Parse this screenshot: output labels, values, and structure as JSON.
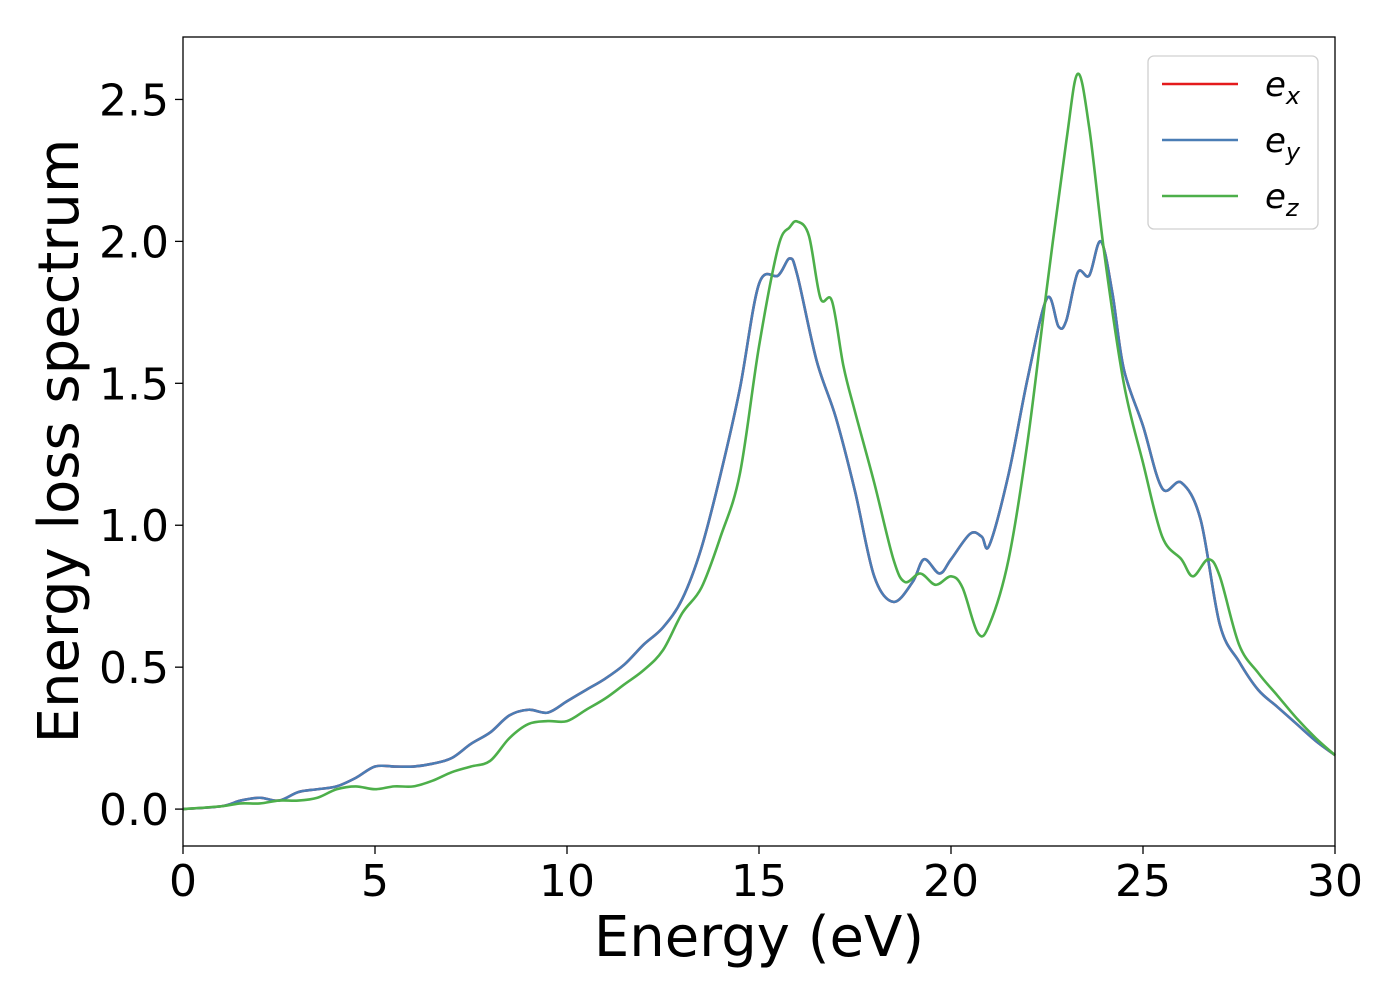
{
  "chart_data": {
    "type": "line",
    "xlabel": "Energy (eV)",
    "ylabel": "Energy loss spectrum",
    "xlim": [
      0,
      30
    ],
    "ylim": [
      -0.13,
      2.72
    ],
    "xticks": [
      0,
      5,
      10,
      15,
      20,
      25,
      30
    ],
    "xtick_labels": [
      "0",
      "5",
      "10",
      "15",
      "20",
      "25",
      "30"
    ],
    "yticks": [
      0.0,
      0.5,
      1.0,
      1.5,
      2.0,
      2.5
    ],
    "ytick_labels": [
      "0.0",
      "0.5",
      "1.0",
      "1.5",
      "2.0",
      "2.5"
    ],
    "grid": false,
    "legend_position": "top-right",
    "series": [
      {
        "name": "e",
        "subscript": "x",
        "color": "#e41a1c",
        "x": [
          0,
          1,
          1.5,
          2,
          2.5,
          3,
          3.5,
          4,
          4.5,
          5,
          5.5,
          6,
          6.5,
          7,
          7.5,
          8,
          8.5,
          9,
          9.5,
          10,
          10.5,
          11,
          11.5,
          12,
          12.5,
          13,
          13.5,
          14,
          14.5,
          15,
          15.5,
          15.8,
          16,
          16.5,
          17,
          17.5,
          18,
          18.5,
          19,
          19.3,
          19.7,
          20,
          20.5,
          20.8,
          21,
          21.5,
          22,
          22.5,
          22.8,
          23,
          23.3,
          23.6,
          23.9,
          24.2,
          24.5,
          25,
          25.5,
          26,
          26.5,
          27,
          27.5,
          28,
          28.5,
          29,
          29.5,
          30
        ],
        "values": [
          0,
          0.01,
          0.03,
          0.04,
          0.03,
          0.06,
          0.07,
          0.08,
          0.11,
          0.15,
          0.15,
          0.15,
          0.16,
          0.18,
          0.23,
          0.27,
          0.33,
          0.35,
          0.34,
          0.38,
          0.42,
          0.46,
          0.51,
          0.58,
          0.64,
          0.74,
          0.92,
          1.18,
          1.48,
          1.85,
          1.88,
          1.94,
          1.88,
          1.58,
          1.38,
          1.12,
          0.82,
          0.73,
          0.8,
          0.88,
          0.83,
          0.88,
          0.97,
          0.96,
          0.93,
          1.18,
          1.52,
          1.8,
          1.7,
          1.72,
          1.89,
          1.88,
          2.0,
          1.82,
          1.55,
          1.35,
          1.13,
          1.15,
          1.02,
          0.65,
          0.52,
          0.42,
          0.36,
          0.3,
          0.24,
          0.19
        ]
      },
      {
        "name": "e",
        "subscript": "y",
        "color": "#4a7db5",
        "x": [
          0,
          1,
          1.5,
          2,
          2.5,
          3,
          3.5,
          4,
          4.5,
          5,
          5.5,
          6,
          6.5,
          7,
          7.5,
          8,
          8.5,
          9,
          9.5,
          10,
          10.5,
          11,
          11.5,
          12,
          12.5,
          13,
          13.5,
          14,
          14.5,
          15,
          15.5,
          15.8,
          16,
          16.5,
          17,
          17.5,
          18,
          18.5,
          19,
          19.3,
          19.7,
          20,
          20.5,
          20.8,
          21,
          21.5,
          22,
          22.5,
          22.8,
          23,
          23.3,
          23.6,
          23.9,
          24.2,
          24.5,
          25,
          25.5,
          26,
          26.5,
          27,
          27.5,
          28,
          28.5,
          29,
          29.5,
          30
        ],
        "values": [
          0,
          0.01,
          0.03,
          0.04,
          0.03,
          0.06,
          0.07,
          0.08,
          0.11,
          0.15,
          0.15,
          0.15,
          0.16,
          0.18,
          0.23,
          0.27,
          0.33,
          0.35,
          0.34,
          0.38,
          0.42,
          0.46,
          0.51,
          0.58,
          0.64,
          0.74,
          0.92,
          1.18,
          1.48,
          1.85,
          1.88,
          1.94,
          1.88,
          1.58,
          1.38,
          1.12,
          0.82,
          0.73,
          0.8,
          0.88,
          0.83,
          0.88,
          0.97,
          0.96,
          0.93,
          1.18,
          1.52,
          1.8,
          1.7,
          1.72,
          1.89,
          1.88,
          2.0,
          1.82,
          1.55,
          1.35,
          1.13,
          1.15,
          1.02,
          0.65,
          0.52,
          0.42,
          0.36,
          0.3,
          0.24,
          0.19
        ]
      },
      {
        "name": "e",
        "subscript": "z",
        "color": "#4daf4a",
        "x": [
          0,
          1,
          1.5,
          2,
          2.5,
          3,
          3.5,
          4,
          4.5,
          5,
          5.5,
          6,
          6.5,
          7,
          7.5,
          8,
          8.5,
          9,
          9.5,
          10,
          10.5,
          11,
          11.5,
          12,
          12.5,
          13,
          13.5,
          14,
          14.5,
          15,
          15.5,
          15.8,
          16,
          16.3,
          16.6,
          16.9,
          17.2,
          17.5,
          18,
          18.5,
          18.8,
          19.2,
          19.6,
          20,
          20.3,
          20.7,
          21,
          21.5,
          22,
          22.5,
          23,
          23.3,
          23.6,
          24,
          24.5,
          25,
          25.5,
          26,
          26.3,
          26.7,
          27,
          27.5,
          28,
          28.5,
          29,
          29.5,
          30
        ],
        "values": [
          0,
          0.01,
          0.02,
          0.02,
          0.03,
          0.03,
          0.04,
          0.07,
          0.08,
          0.07,
          0.08,
          0.08,
          0.1,
          0.13,
          0.15,
          0.17,
          0.25,
          0.3,
          0.31,
          0.31,
          0.35,
          0.39,
          0.44,
          0.49,
          0.56,
          0.69,
          0.78,
          0.96,
          1.18,
          1.63,
          1.98,
          2.05,
          2.07,
          2.02,
          1.8,
          1.79,
          1.56,
          1.4,
          1.15,
          0.88,
          0.8,
          0.83,
          0.79,
          0.82,
          0.78,
          0.62,
          0.65,
          0.88,
          1.3,
          1.84,
          2.35,
          2.59,
          2.4,
          1.95,
          1.5,
          1.22,
          0.96,
          0.88,
          0.82,
          0.88,
          0.82,
          0.58,
          0.48,
          0.4,
          0.32,
          0.25,
          0.19
        ]
      }
    ]
  }
}
